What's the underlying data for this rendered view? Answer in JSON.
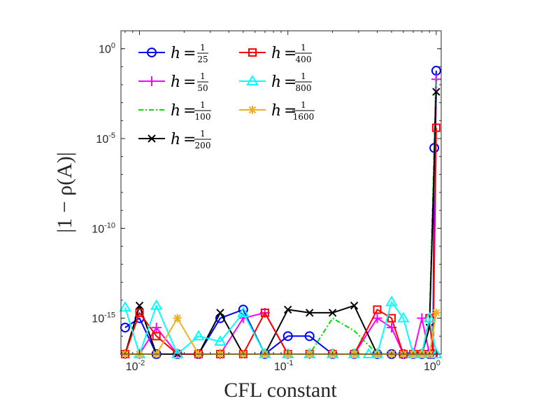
{
  "chart_data": {
    "type": "line",
    "title": "",
    "xlabel": "CFL constant",
    "ylabel": "|1 − ρ(A)|",
    "xscale": "log",
    "yscale": "log",
    "xlim": [
      0.0075,
      1.08
    ],
    "ylim": [
      1e-17,
      10.0
    ],
    "x_ticks": [
      {
        "value": 0.01,
        "base": "10",
        "exp": "-2"
      },
      {
        "value": 0.1,
        "base": "10",
        "exp": "-1"
      },
      {
        "value": 1,
        "base": "10",
        "exp": "0"
      }
    ],
    "y_ticks": [
      {
        "value": 1.0,
        "base": "10",
        "exp": "0"
      },
      {
        "value": 1e-05,
        "base": "10",
        "exp": "-5"
      },
      {
        "value": 1e-10,
        "base": "10",
        "exp": "-10"
      },
      {
        "value": 1e-15,
        "base": "10",
        "exp": "-15"
      }
    ],
    "legend_position": "top-left",
    "series": [
      {
        "name": "h = 1/25",
        "num": "1",
        "den": "25",
        "color": "#0000ff",
        "marker": "circle",
        "dash": "solid",
        "points": [
          [
            0.008,
            3e-16
          ],
          [
            0.01,
            1e-15
          ],
          [
            0.013,
            1e-17
          ],
          [
            0.018,
            1e-17
          ],
          [
            0.025,
            1e-17
          ],
          [
            0.035,
            1e-15
          ],
          [
            0.05,
            3e-15
          ],
          [
            0.07,
            1e-17
          ],
          [
            0.1,
            1e-16
          ],
          [
            0.14,
            1e-16
          ],
          [
            0.2,
            1e-17
          ],
          [
            0.28,
            1e-17
          ],
          [
            0.4,
            1e-17
          ],
          [
            0.5,
            1e-17
          ],
          [
            0.6,
            1e-17
          ],
          [
            0.7,
            1e-17
          ],
          [
            0.8,
            1e-17
          ],
          [
            0.9,
            1e-17
          ],
          [
            0.95,
            1e-17
          ],
          [
            0.97,
            3e-06
          ],
          [
            1.0,
            0.06
          ]
        ]
      },
      {
        "name": "h = 1/50",
        "num": "1",
        "den": "50",
        "color": "#ff00ff",
        "marker": "plus",
        "dash": "solid",
        "points": [
          [
            0.008,
            1e-17
          ],
          [
            0.01,
            1e-17
          ],
          [
            0.013,
            3e-16
          ],
          [
            0.018,
            1e-17
          ],
          [
            0.025,
            1e-17
          ],
          [
            0.035,
            1e-17
          ],
          [
            0.05,
            1e-15
          ],
          [
            0.07,
            2e-15
          ],
          [
            0.1,
            1e-17
          ],
          [
            0.14,
            1e-17
          ],
          [
            0.2,
            1e-17
          ],
          [
            0.28,
            1e-17
          ],
          [
            0.4,
            1e-15
          ],
          [
            0.5,
            3e-16
          ],
          [
            0.6,
            1e-17
          ],
          [
            0.7,
            1e-17
          ],
          [
            0.8,
            1e-15
          ],
          [
            0.9,
            1e-17
          ],
          [
            0.95,
            1e-17
          ],
          [
            1.0,
            0.02
          ]
        ]
      },
      {
        "name": "h = 1/100",
        "num": "1",
        "den": "100",
        "color": "#00e000",
        "marker": "none",
        "dash": "dashdot",
        "points": [
          [
            0.008,
            1e-17
          ],
          [
            0.01,
            1e-17
          ],
          [
            0.013,
            1e-17
          ],
          [
            0.018,
            1e-17
          ],
          [
            0.025,
            1e-17
          ],
          [
            0.035,
            1e-17
          ],
          [
            0.05,
            1e-17
          ],
          [
            0.07,
            1e-17
          ],
          [
            0.1,
            1e-17
          ],
          [
            0.14,
            1e-17
          ],
          [
            0.2,
            1e-15
          ],
          [
            0.28,
            2e-16
          ],
          [
            0.4,
            1e-17
          ],
          [
            0.5,
            1e-17
          ],
          [
            0.6,
            1e-17
          ],
          [
            0.7,
            1e-17
          ],
          [
            0.8,
            1e-17
          ],
          [
            0.9,
            1e-15
          ],
          [
            1.0,
            0.03
          ]
        ]
      },
      {
        "name": "h = 1/200",
        "num": "1",
        "den": "200",
        "color": "#000000",
        "marker": "x",
        "dash": "solid",
        "points": [
          [
            0.008,
            1e-17
          ],
          [
            0.01,
            5e-15
          ],
          [
            0.013,
            1e-17
          ],
          [
            0.018,
            1e-17
          ],
          [
            0.025,
            1e-17
          ],
          [
            0.035,
            2e-15
          ],
          [
            0.05,
            1e-17
          ],
          [
            0.07,
            1e-17
          ],
          [
            0.1,
            3e-15
          ],
          [
            0.14,
            2e-15
          ],
          [
            0.2,
            2e-15
          ],
          [
            0.28,
            5e-15
          ],
          [
            0.4,
            1e-17
          ],
          [
            0.5,
            1e-17
          ],
          [
            0.6,
            1e-17
          ],
          [
            0.7,
            1e-17
          ],
          [
            0.8,
            1e-17
          ],
          [
            0.9,
            3e-16
          ],
          [
            1.0,
            0.004
          ]
        ]
      },
      {
        "name": "h = 1/400",
        "num": "1",
        "den": "400",
        "color": "#ff0000",
        "marker": "square",
        "dash": "solid",
        "points": [
          [
            0.008,
            1e-17
          ],
          [
            0.01,
            2e-15
          ],
          [
            0.013,
            1e-16
          ],
          [
            0.018,
            1e-17
          ],
          [
            0.025,
            1e-17
          ],
          [
            0.035,
            1e-17
          ],
          [
            0.05,
            1e-17
          ],
          [
            0.07,
            2e-15
          ],
          [
            0.1,
            1e-17
          ],
          [
            0.14,
            1e-17
          ],
          [
            0.2,
            1e-17
          ],
          [
            0.28,
            1e-17
          ],
          [
            0.4,
            3e-15
          ],
          [
            0.5,
            1e-15
          ],
          [
            0.6,
            1e-17
          ],
          [
            0.7,
            1e-17
          ],
          [
            0.8,
            1e-17
          ],
          [
            0.9,
            1e-15
          ],
          [
            0.95,
            1e-17
          ],
          [
            1.0,
            4e-05
          ]
        ]
      },
      {
        "name": "h = 1/800",
        "num": "1",
        "den": "800",
        "color": "#00ffff",
        "marker": "triangle",
        "dash": "solid",
        "points": [
          [
            0.008,
            4e-15
          ],
          [
            0.01,
            1e-17
          ],
          [
            0.013,
            5e-15
          ],
          [
            0.018,
            1e-17
          ],
          [
            0.025,
            1e-16
          ],
          [
            0.035,
            5e-17
          ],
          [
            0.05,
            2e-15
          ],
          [
            0.07,
            1e-17
          ],
          [
            0.1,
            1e-17
          ],
          [
            0.14,
            1e-17
          ],
          [
            0.2,
            1e-17
          ],
          [
            0.28,
            1e-17
          ],
          [
            0.35,
            1e-17
          ],
          [
            0.4,
            1e-17
          ],
          [
            0.5,
            8e-15
          ],
          [
            0.6,
            1e-15
          ],
          [
            0.7,
            1e-17
          ],
          [
            0.8,
            1e-17
          ],
          [
            0.9,
            1e-15
          ],
          [
            1.0,
            1e-17
          ]
        ]
      },
      {
        "name": "h = 1/1600",
        "num": "1",
        "den": "1600",
        "color": "#edb120",
        "marker": "asterisk",
        "dash": "solid",
        "points": [
          [
            0.008,
            1e-17
          ],
          [
            0.01,
            1e-17
          ],
          [
            0.013,
            1e-17
          ],
          [
            0.018,
            1e-15
          ],
          [
            0.025,
            1e-17
          ],
          [
            0.035,
            1e-17
          ],
          [
            0.05,
            1e-17
          ],
          [
            0.07,
            1e-17
          ],
          [
            0.1,
            1e-17
          ],
          [
            0.14,
            1e-17
          ],
          [
            0.2,
            1e-17
          ],
          [
            0.28,
            1e-17
          ],
          [
            0.4,
            1e-17
          ],
          [
            0.5,
            1e-17
          ],
          [
            0.6,
            1e-17
          ],
          [
            0.7,
            1e-17
          ],
          [
            0.8,
            1e-17
          ],
          [
            0.9,
            1e-17
          ],
          [
            1.0,
            2e-15
          ]
        ]
      }
    ]
  }
}
